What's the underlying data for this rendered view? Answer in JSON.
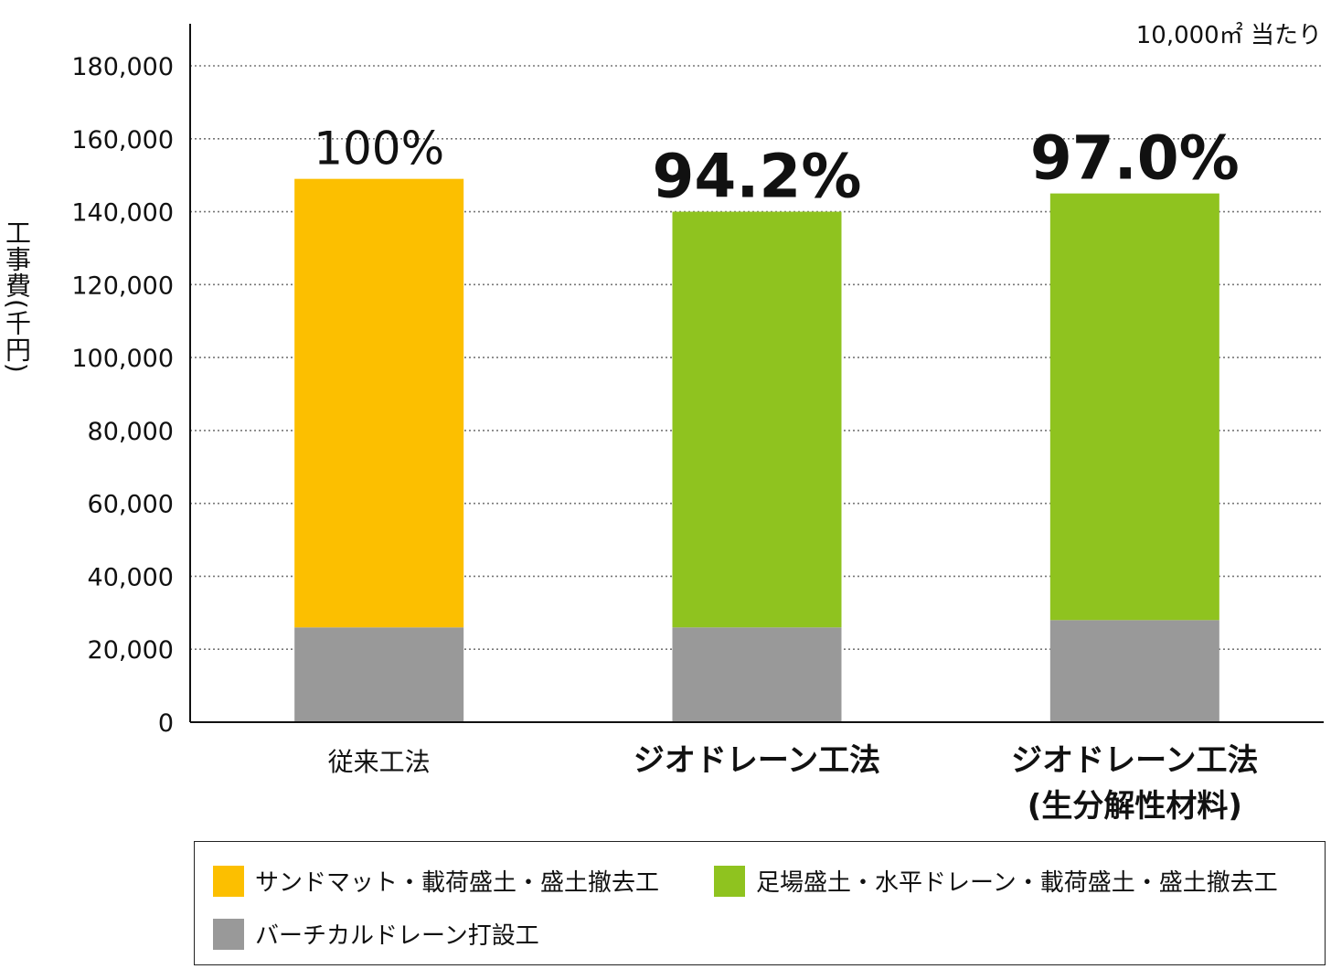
{
  "chart_data": {
    "type": "bar",
    "stacked": true,
    "categories": [
      "従来工法",
      "ジオドレーン工法",
      "ジオドレーン工法\n(生分解性材料)"
    ],
    "category_lines": [
      [
        "従来工法"
      ],
      [
        "ジオドレーン工法"
      ],
      [
        "ジオドレーン工法",
        "(生分解性材料)"
      ]
    ],
    "category_bold": [
      false,
      true,
      true
    ],
    "series": [
      {
        "name": "バーチカルドレーン打設工",
        "color": "#999999",
        "values": [
          26000,
          26000,
          28000
        ]
      },
      {
        "name": "サンドマット・載荷盛土・盛土撤去工",
        "color": "#fcbf00",
        "values": [
          123000,
          0,
          0
        ]
      },
      {
        "name": "足場盛土・水平ドレーン・載荷盛土・盛土撤去工",
        "color": "#8fc31f",
        "values": [
          0,
          114000,
          117000
        ]
      }
    ],
    "percent_labels": [
      "100%",
      "94.2%",
      "97.0%"
    ],
    "percent_bold": [
      false,
      true,
      true
    ],
    "ylabel": "工事費(千円)",
    "unit_note": "10,000㎡ 当たり",
    "ylim": [
      0,
      180000
    ],
    "yticks": [
      0,
      20000,
      40000,
      60000,
      80000,
      100000,
      120000,
      140000,
      160000,
      180000
    ],
    "ytick_labels": [
      "0",
      "20,000",
      "40,000",
      "60,000",
      "80,000",
      "100,000",
      "120,000",
      "140,000",
      "160,000",
      "180,000"
    ],
    "grid": "horizontal-dotted",
    "legend_placement": "bottom"
  },
  "legend": {
    "items": [
      {
        "label": "サンドマット・載荷盛土・盛土撤去工",
        "color": "#fcbf00"
      },
      {
        "label": "足場盛土・水平ドレーン・載荷盛土・盛土撤去工",
        "color": "#8fc31f"
      },
      {
        "label": "バーチカルドレーン打設工",
        "color": "#999999"
      }
    ]
  }
}
